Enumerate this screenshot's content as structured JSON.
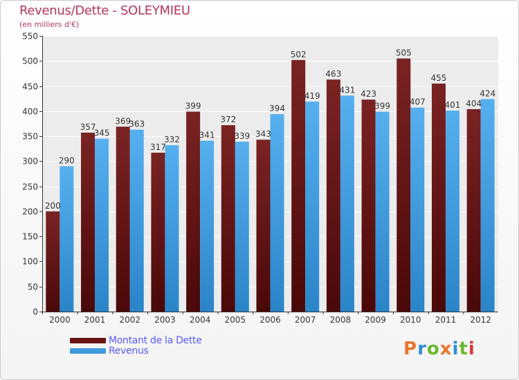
{
  "header": {
    "title": "Revenus/Dette - SOLEYMIEU",
    "subtitle": "(en milliers d'€)"
  },
  "legend": {
    "items": [
      {
        "label": "Montant de la Dette",
        "color": "#6b1414"
      },
      {
        "label": "Revenus",
        "color": "#3d9be0"
      }
    ]
  },
  "logo": {
    "text": "Proxiti",
    "letters": [
      "P",
      "r",
      "o",
      "x",
      "i",
      "t",
      "i"
    ],
    "colors": [
      "#e8762c",
      "#2e8fd8",
      "#6cb82e",
      "#e8762c",
      "#2e8fd8",
      "#6cb82e",
      "#d93a3a"
    ]
  },
  "chart_data": {
    "type": "bar",
    "categories": [
      "2000",
      "2001",
      "2002",
      "2003",
      "2004",
      "2005",
      "2006",
      "2007",
      "2008",
      "2009",
      "2010",
      "2011",
      "2012"
    ],
    "series": [
      {
        "name": "Montant de la Dette",
        "color": "#6b1414",
        "values": [
          200,
          357,
          369,
          317,
          399,
          372,
          343,
          502,
          463,
          423,
          505,
          455,
          404
        ]
      },
      {
        "name": "Revenus",
        "color": "#3d9be0",
        "values": [
          290,
          345,
          363,
          332,
          341,
          339,
          394,
          419,
          431,
          399,
          407,
          401,
          424
        ]
      }
    ],
    "data_labels": {
      "series_0": [
        "200",
        "357",
        "369",
        "317",
        "399",
        "372",
        "343",
        "502",
        "463",
        "423",
        "505",
        "455",
        "404"
      ],
      "series_1": [
        "290",
        "345",
        "363",
        "332",
        "341",
        "339",
        "394",
        "419",
        "431",
        "399",
        "407",
        "401",
        "424"
      ]
    },
    "ylim": [
      0,
      550
    ],
    "yticks": [
      "0",
      "50",
      "100",
      "150",
      "200",
      "250",
      "300",
      "350",
      "400",
      "450",
      "500",
      "550"
    ],
    "ytick_values": [
      0,
      50,
      100,
      150,
      200,
      250,
      300,
      350,
      400,
      450,
      500,
      550
    ],
    "grid": true,
    "legend_position": "bottom-left"
  }
}
